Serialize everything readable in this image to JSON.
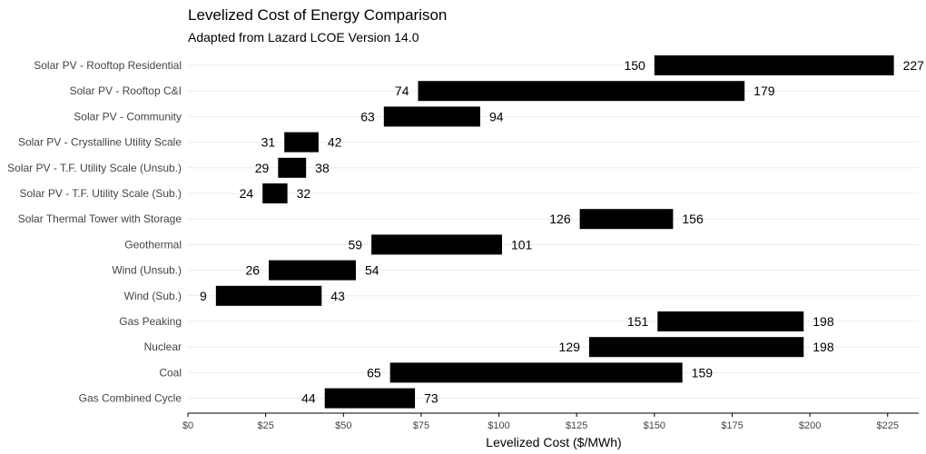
{
  "chart_data": {
    "type": "bar",
    "orientation": "horizontal-range",
    "title": "Levelized Cost of Energy Comparison",
    "subtitle": "Adapted from Lazard LCOE Version 14.0",
    "xlabel": "Levelized Cost ($/MWh)",
    "ylabel": "",
    "xlim": [
      0,
      235
    ],
    "x_ticks": [
      0,
      25,
      50,
      75,
      100,
      125,
      150,
      175,
      200,
      225
    ],
    "x_tick_labels": [
      "$0",
      "$25",
      "$50",
      "$75",
      "$100",
      "$125",
      "$150",
      "$175",
      "$200",
      "$225"
    ],
    "grid": true,
    "categories": [
      "Solar PV - Rooftop Residential",
      "Solar PV - Rooftop C&I",
      "Solar PV - Community",
      "Solar PV - Crystalline Utility Scale",
      "Solar PV - T.F. Utility Scale (Unsub.)",
      "Solar PV - T.F. Utility Scale (Sub.)",
      "Solar Thermal Tower with Storage",
      "Geothermal",
      "Wind (Unsub.)",
      "Wind (Sub.)",
      "Gas Peaking",
      "Nuclear",
      "Coal",
      "Gas Combined Cycle"
    ],
    "low": [
      150,
      74,
      63,
      31,
      29,
      24,
      126,
      59,
      26,
      9,
      151,
      129,
      65,
      44
    ],
    "high": [
      227,
      179,
      94,
      42,
      38,
      32,
      156,
      101,
      54,
      43,
      198,
      198,
      159,
      73
    ],
    "bar_color": "#000000"
  }
}
